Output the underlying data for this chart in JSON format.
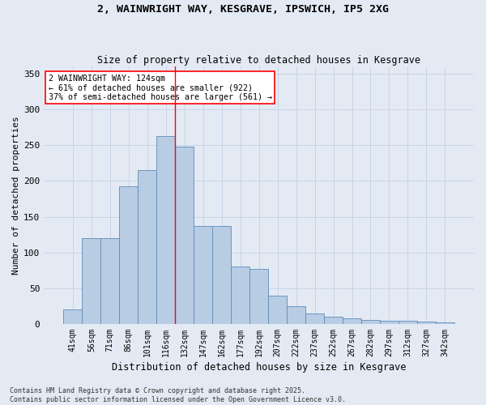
{
  "title1": "2, WAINWRIGHT WAY, KESGRAVE, IPSWICH, IP5 2XG",
  "title2": "Size of property relative to detached houses in Kesgrave",
  "xlabel": "Distribution of detached houses by size in Kesgrave",
  "ylabel": "Number of detached properties",
  "categories": [
    "41sqm",
    "56sqm",
    "71sqm",
    "86sqm",
    "101sqm",
    "116sqm",
    "132sqm",
    "147sqm",
    "162sqm",
    "177sqm",
    "192sqm",
    "207sqm",
    "222sqm",
    "237sqm",
    "252sqm",
    "267sqm",
    "282sqm",
    "297sqm",
    "312sqm",
    "327sqm",
    "342sqm"
  ],
  "values": [
    20,
    120,
    120,
    193,
    215,
    263,
    248,
    137,
    137,
    80,
    77,
    40,
    25,
    15,
    10,
    8,
    6,
    5,
    4,
    3,
    2
  ],
  "bar_color": "#b8cce4",
  "bar_edge_color": "#5b8db8",
  "marker_bin_index": 6,
  "marker_color": "red",
  "annotation_text": "2 WAINWRIGHT WAY: 124sqm\n← 61% of detached houses are smaller (922)\n37% of semi-detached houses are larger (561) →",
  "annotation_box_color": "white",
  "annotation_box_edge_color": "red",
  "ylim": [
    0,
    360
  ],
  "yticks": [
    0,
    50,
    100,
    150,
    200,
    250,
    300,
    350
  ],
  "grid_color": "#c8d4e8",
  "background_color": "#e4eaf4",
  "footnote": "Contains HM Land Registry data © Crown copyright and database right 2025.\nContains public sector information licensed under the Open Government Licence v3.0."
}
